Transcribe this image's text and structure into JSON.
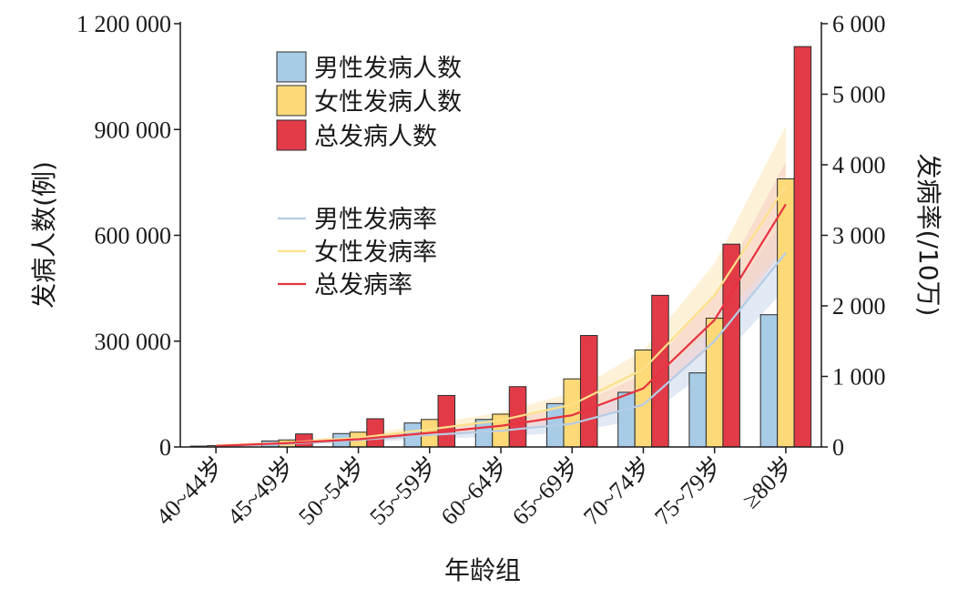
{
  "chart_data": {
    "type": "bar",
    "xlabel": "年龄组",
    "ylabel": "发病人数(例)",
    "y2label": "发病率(/10万)",
    "categories": [
      "40~44岁",
      "45~49岁",
      "50~54岁",
      "55~59岁",
      "60~64岁",
      "65~69岁",
      "70~74岁",
      "75~79岁",
      "≥80岁"
    ],
    "ylim": [
      0,
      1200000
    ],
    "y2lim": [
      0,
      6000
    ],
    "yticks": [
      "0",
      "300 000",
      "600 000",
      "900 000",
      "1 200 000"
    ],
    "y2ticks": [
      "0",
      "1 000",
      "2 000",
      "3 000",
      "4 000",
      "5 000",
      "6 000"
    ],
    "bar_series": [
      {
        "name": "男性发病人数",
        "color": "#a8cbe6",
        "values": [
          2500,
          17000,
          38000,
          68000,
          78000,
          123000,
          155000,
          210000,
          375000
        ]
      },
      {
        "name": "女性发病人数",
        "color": "#fdd978",
        "values": [
          4000,
          20000,
          42000,
          78000,
          93000,
          193000,
          275000,
          365000,
          760000
        ]
      },
      {
        "name": "总发病人数",
        "color": "#e23b47",
        "values": [
          6500,
          37000,
          80000,
          146000,
          171000,
          316000,
          430000,
          575000,
          1135000
        ]
      }
    ],
    "line_series": [
      {
        "name": "男性发病率",
        "color": "#b5cce6",
        "band_color": "#c3d4ea",
        "values": [
          12,
          45,
          100,
          170,
          230,
          330,
          600,
          1500,
          2750
        ],
        "band_halfwidth": [
          10,
          20,
          35,
          55,
          80,
          120,
          200,
          350,
          500
        ]
      },
      {
        "name": "女性发病率",
        "color": "#fde08a",
        "band_color": "#fbe6b0",
        "values": [
          20,
          60,
          130,
          250,
          380,
          600,
          1100,
          2150,
          3700
        ],
        "band_halfwidth": [
          15,
          25,
          45,
          75,
          110,
          170,
          270,
          450,
          850
        ]
      },
      {
        "name": "总发病率",
        "color": "#e8323f",
        "band_color": "#f6c9c6",
        "values": [
          15,
          55,
          110,
          200,
          300,
          450,
          830,
          1800,
          3440
        ],
        "band_halfwidth": [
          10,
          20,
          35,
          55,
          80,
          120,
          200,
          350,
          600
        ]
      }
    ],
    "legend_position": "top-left",
    "grid": false
  }
}
